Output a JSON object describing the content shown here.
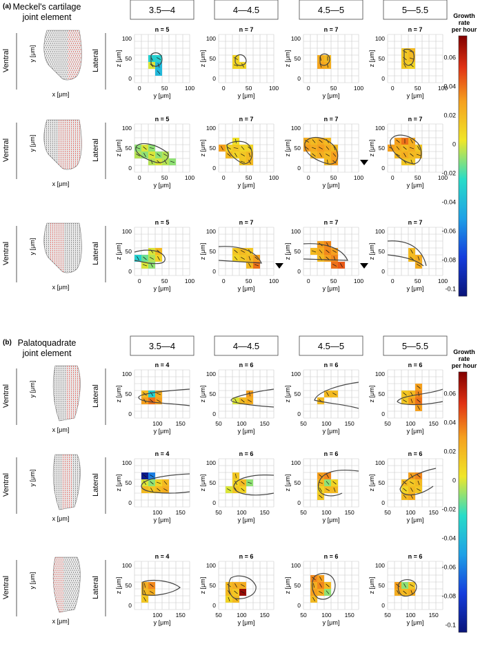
{
  "figure": {
    "colorbar": {
      "title_lines": [
        "Growth",
        "rate",
        "per hour"
      ],
      "ticks": [
        "0.06",
        "0.04",
        "0.02",
        "0",
        "-0.02",
        "-0.04",
        "-0.06",
        "-0.08",
        "-0.1"
      ],
      "range": [
        -0.105,
        0.075
      ]
    },
    "panel_a": {
      "letter": "(a)",
      "title_lines": [
        "Meckel's cartilage",
        "joint element"
      ],
      "intervals": [
        "3.5—4",
        "4—4.5",
        "4.5—5",
        "5—5.5"
      ],
      "ventral_label": "Ventral",
      "lateral_label": "Lateral",
      "bone_ylabel": "y [μm]",
      "bone_xlabel": "x [μm]",
      "plot_xlabel": "y [μm]",
      "plot_ylabel": "z [μm]",
      "x_ticks": [
        "0",
        "50",
        "100"
      ],
      "y_ticks": [
        "0",
        "50",
        "100"
      ],
      "rows": [
        {
          "n": [
            "n = 5",
            "n = 7",
            "n = 7",
            "n = 7"
          ]
        },
        {
          "n": [
            "n = 5",
            "n = 7",
            "n = 7",
            "n = 7"
          ]
        },
        {
          "n": [
            "n = 5",
            "n = 7",
            "n = 7",
            "n = 7"
          ]
        }
      ]
    },
    "panel_b": {
      "letter": "(b)",
      "title_lines": [
        "Palatoquadrate",
        "joint element"
      ],
      "intervals": [
        "3.5—4",
        "4—4.5",
        "4.5—5",
        "5—5.5"
      ],
      "ventral_label": "Ventral",
      "lateral_label": "Lateral",
      "bone_ylabel": "y [μm]",
      "bone_xlabel": "x [μm]",
      "plot_xlabel": "y [μm]",
      "plot_ylabel": "z [μm]",
      "x_ticks_first": [
        "100",
        "150"
      ],
      "x_ticks": [
        "50",
        "100",
        "150"
      ],
      "y_ticks": [
        "0",
        "50",
        "100"
      ],
      "rows": [
        {
          "n": [
            "n = 4",
            "n = 6",
            "n = 6",
            "n = 6"
          ]
        },
        {
          "n": [
            "n = 4",
            "n = 6",
            "n = 6",
            "n = 6"
          ]
        },
        {
          "n": [
            "n = 4",
            "n = 6",
            "n = 6",
            "n = 6"
          ]
        }
      ]
    }
  }
}
